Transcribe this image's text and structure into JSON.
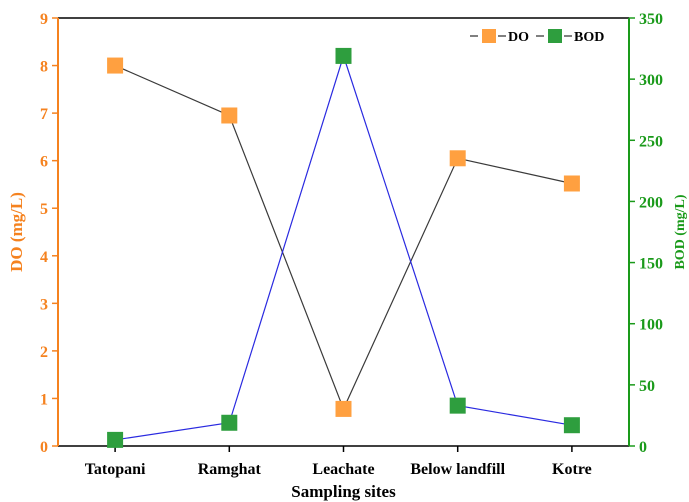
{
  "chart_data": {
    "type": "line",
    "categories": [
      "Tatopani",
      "Ramghat",
      "Leachate",
      "Below landfill",
      "Kotre"
    ],
    "xlabel": "Sampling sites",
    "y_left": {
      "label": "DO (mg/L)",
      "lim": [
        0,
        9
      ],
      "ticks": [
        0,
        1,
        2,
        3,
        4,
        5,
        6,
        7,
        8,
        9
      ],
      "color": "#f5821f"
    },
    "y_right": {
      "label": "BOD (mg/L)",
      "lim": [
        0,
        350
      ],
      "ticks": [
        0,
        50,
        100,
        150,
        200,
        250,
        300,
        350
      ],
      "color": "#1a9a1a"
    },
    "series": [
      {
        "name": "DO",
        "axis": "left",
        "values": [
          8.0,
          6.95,
          0.78,
          6.05,
          5.52
        ],
        "marker_color": "#ffa040",
        "line_color": "#3a3a3a"
      },
      {
        "name": "BOD",
        "axis": "right",
        "values": [
          5,
          19,
          319,
          33,
          17
        ],
        "marker_color": "#2e9e3e",
        "line_color": "#2a2ae0"
      }
    ],
    "legend": {
      "position": "top-right",
      "items": [
        "DO",
        "BOD"
      ]
    },
    "grid": false
  }
}
